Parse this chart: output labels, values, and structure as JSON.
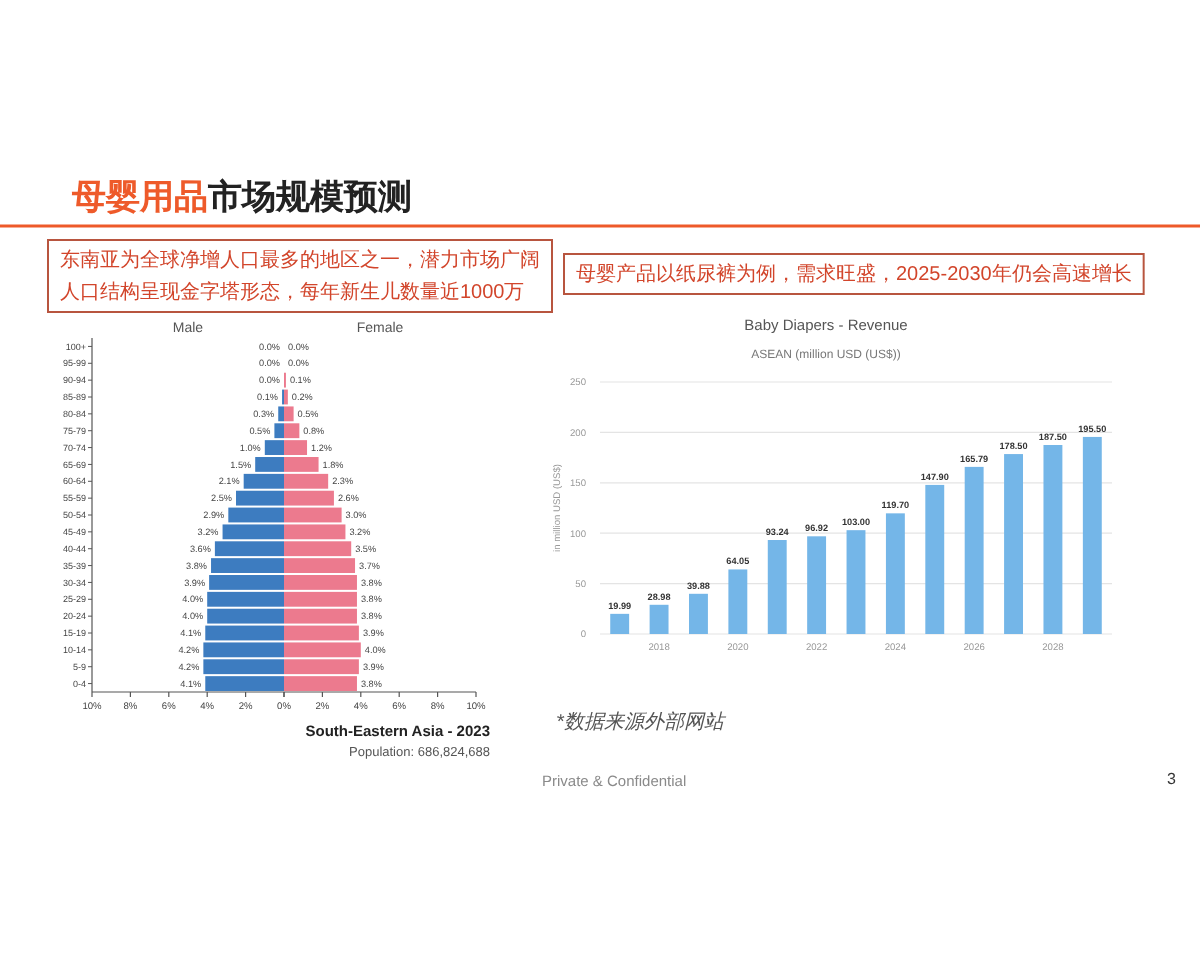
{
  "chart_data": [
    {
      "type": "bar",
      "orientation": "horizontal",
      "title": "Male",
      "categories": [
        "100+",
        "95-99",
        "90-94",
        "85-89",
        "80-84",
        "75-79",
        "70-74",
        "65-69",
        "60-64",
        "55-59",
        "50-54",
        "45-49",
        "40-44",
        "35-39",
        "30-34",
        "25-29",
        "20-24",
        "15-19",
        "10-14",
        "5-9",
        "0-4"
      ],
      "color": "#3d7cc0",
      "values": [
        0,
        0,
        0,
        0.1,
        0.3,
        0.5,
        1.0,
        1.5,
        2.1,
        2.5,
        2.9,
        3.2,
        3.6,
        3.8,
        3.9,
        4.0,
        4.0,
        4.1,
        4.2,
        4.2,
        4.1
      ],
      "value_labels": [
        "0.0%",
        "0.0%",
        "0.0%",
        "0.1%",
        "0.3%",
        "0.5%",
        "1.0%",
        "1.5%",
        "2.1%",
        "2.5%",
        "2.9%",
        "3.2%",
        "3.6%",
        "3.8%",
        "3.9%",
        "4.0%",
        "4.0%",
        "4.1%",
        "4.2%",
        "4.2%",
        "4.1%"
      ],
      "xlim": [
        10,
        0
      ],
      "xticks": [
        {
          "value": 10,
          "label": "10%"
        },
        {
          "value": 8,
          "label": "8%"
        },
        {
          "value": 6,
          "label": "6%"
        },
        {
          "value": 4,
          "label": "4%"
        },
        {
          "value": 2,
          "label": "2%"
        },
        {
          "value": 0,
          "label": "0%"
        }
      ],
      "annotations": [
        "母婴用品市场规模预测",
        "东南亚为全球净增人口最多的地区之一，潜力市场广阔",
        "人口结构呈现金字塔形态，每年新生儿数量近1000万",
        "Private & Confidential",
        "3"
      ]
    },
    {
      "type": "bar",
      "orientation": "horizontal",
      "title": "Female",
      "tick_labels": "x",
      "categories": [
        null,
        null,
        null,
        null,
        null,
        null,
        null,
        null,
        null,
        null,
        null,
        null,
        null,
        null,
        null,
        null,
        null,
        null,
        null,
        null,
        null
      ],
      "color": "#ec7a8e",
      "values": [
        0,
        0,
        0.1,
        0.2,
        0.5,
        0.8,
        1.2,
        1.8,
        2.3,
        2.6,
        3.0,
        3.2,
        3.5,
        3.7,
        3.8,
        3.8,
        3.8,
        3.9,
        4.0,
        3.9,
        3.8
      ],
      "value_labels": [
        "0.0%",
        "0.0%",
        "0.1%",
        "0.2%",
        "0.5%",
        "0.8%",
        "1.2%",
        "1.8%",
        "2.3%",
        "2.6%",
        "3.0%",
        "3.2%",
        "3.5%",
        "3.7%",
        "3.8%",
        "3.8%",
        "3.8%",
        "3.9%",
        "4.0%",
        "3.9%",
        "3.8%"
      ],
      "xlim": [
        0,
        10
      ],
      "xticks": [
        {
          "value": 0,
          "label": null
        },
        {
          "value": 2,
          "label": "2%"
        },
        {
          "value": 4,
          "label": "4%"
        },
        {
          "value": 6,
          "label": "6%"
        },
        {
          "value": 8,
          "label": "8%"
        },
        {
          "value": 10,
          "label": "10%"
        }
      ],
      "annotations": [
        "South-Eastern Asia - 2023",
        "Population: 686,824,688"
      ]
    },
    {
      "type": "bar",
      "title": "Baby Diapers - Revenue",
      "subtitle": "ASEAN (million USD (US$))",
      "ylabel": "in million USD (US$)",
      "categories": [
        null,
        "2018",
        null,
        "2020",
        null,
        "2022",
        null,
        "2024",
        null,
        "2026",
        null,
        "2028",
        null
      ],
      "values": [
        19.99,
        28.98,
        39.88,
        64.05,
        93.24,
        96.92,
        103.0,
        119.7,
        147.9,
        165.79,
        178.5,
        187.5,
        195.5
      ],
      "value_labels": [
        "19.99",
        "28.98",
        "39.88",
        "64.05",
        "93.24",
        "96.92",
        "103.00",
        "119.70",
        "147.90",
        "165.79",
        "178.50",
        "187.50",
        "195.50"
      ],
      "color": "#74b6e8",
      "ylim": [
        0,
        250
      ],
      "yticks": [
        0,
        50,
        100,
        150,
        200,
        250
      ],
      "grid": "y",
      "annotations": [
        "母婴产品以纸尿裤为例，需求旺盛，2025-2030年仍会高速增长",
        "*数据来源外部网站"
      ]
    }
  ]
}
